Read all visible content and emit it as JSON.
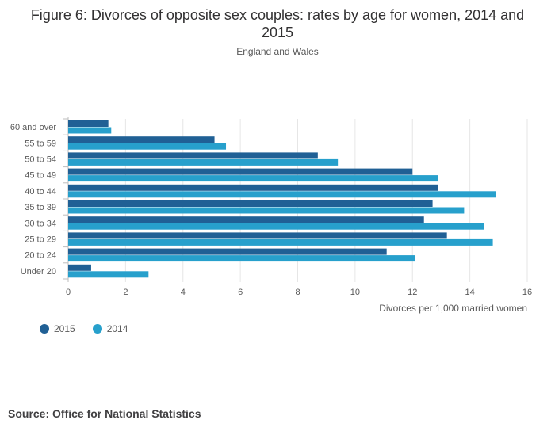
{
  "title": "Figure 6: Divorces of opposite sex couples: rates by age for women, 2014 and 2015",
  "subtitle": "England and Wales",
  "source": "Source: Office for National Statistics",
  "colors": {
    "2015": "#206095",
    "2014": "#27a0cc"
  },
  "chart_data": {
    "type": "bar",
    "orientation": "horizontal",
    "categories": [
      "60 and over",
      "55 to 59",
      "50 to 54",
      "45 to 49",
      "40 to 44",
      "35 to 39",
      "30 to 34",
      "25 to 29",
      "20 to 24",
      "Under 20"
    ],
    "series": [
      {
        "name": "2015",
        "values": [
          1.4,
          5.1,
          8.7,
          12.0,
          12.9,
          12.7,
          12.4,
          13.2,
          11.1,
          0.8
        ]
      },
      {
        "name": "2014",
        "values": [
          1.5,
          5.5,
          9.4,
          12.9,
          14.9,
          13.8,
          14.5,
          14.8,
          12.1,
          2.8
        ]
      }
    ],
    "xlabel": "Divorces per 1,000 married women",
    "xlim": [
      0,
      16
    ],
    "xticks": [
      "0",
      "2",
      "4",
      "6",
      "8",
      "10",
      "12",
      "14",
      "16"
    ],
    "grid": true,
    "legend_position": "bottom-left"
  }
}
